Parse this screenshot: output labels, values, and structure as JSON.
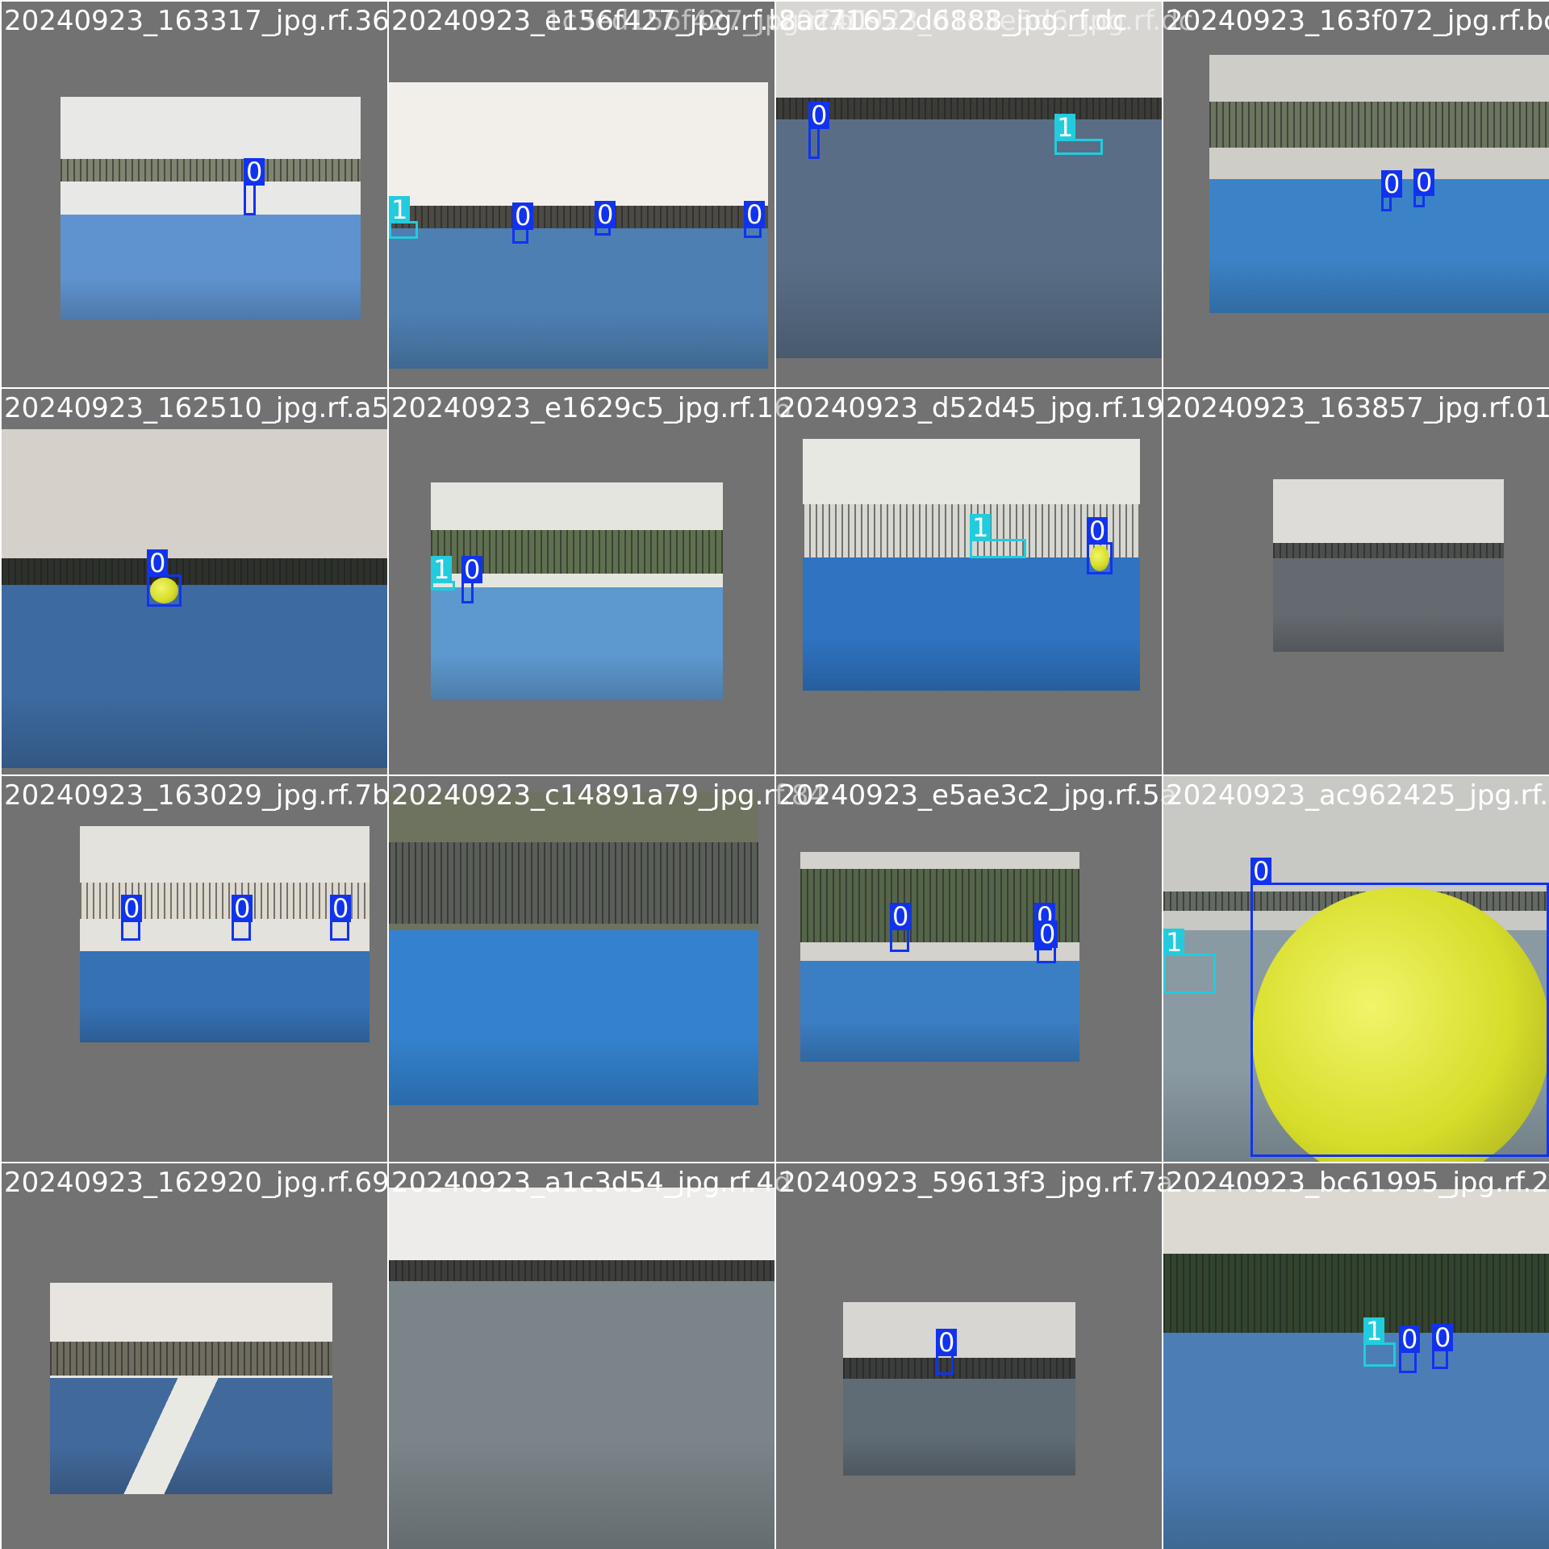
{
  "grid": {
    "tiles": [
      {
        "name": "20240923_163317_jpg.rf.36",
        "overlay": "20240923_1c3ed156f427_jpg.rf.b1",
        "boxes": [
          {
            "cls": "0",
            "label": "0"
          }
        ]
      },
      {
        "name": "20240923_e156f427_jpg.rf.b1",
        "overlay": "20240923_d1c3e5d6_jpg.rf.dc",
        "boxes": [
          {
            "cls": "1",
            "label": "1"
          },
          {
            "cls": "0",
            "label": "0"
          },
          {
            "cls": "0",
            "label": "0"
          },
          {
            "cls": "0",
            "label": "0"
          }
        ]
      },
      {
        "name": "8ac71652d6888_jpg.rf.dc",
        "overlay": "20240923_163f072_jpg.rf.bc",
        "boxes": [
          {
            "cls": "0",
            "label": "0"
          },
          {
            "cls": "1",
            "label": "1"
          }
        ]
      },
      {
        "name": "20240923_163f072_jpg.rf.bc",
        "overlay": "",
        "boxes": [
          {
            "cls": "0",
            "label": "0"
          },
          {
            "cls": "0",
            "label": "0"
          }
        ]
      },
      {
        "name": "20240923_162510_jpg.rf.a5",
        "overlay": "20240923_e1629c5_jpg.rf.16",
        "boxes": [
          {
            "cls": "0",
            "label": "0"
          }
        ]
      },
      {
        "name": "20240923_e1629c5_jpg.rf.16",
        "overlay": "20240923_d52d45_jpg.rf.19",
        "boxes": [
          {
            "cls": "1",
            "label": "1"
          },
          {
            "cls": "0",
            "label": "0"
          }
        ]
      },
      {
        "name": "20240923_d52d45_jpg.rf.19",
        "overlay": "20240923_163857_jpg.rf.01",
        "boxes": [
          {
            "cls": "1",
            "label": "1"
          },
          {
            "cls": "0",
            "label": "0"
          }
        ]
      },
      {
        "name": "20240923_163857_jpg.rf.01",
        "overlay": "",
        "boxes": []
      },
      {
        "name": "20240923_163029_jpg.rf.7b",
        "overlay": "20240923_c14891a79_jpg.rf.84",
        "boxes": [
          {
            "cls": "0",
            "label": "0"
          },
          {
            "cls": "0",
            "label": "0"
          },
          {
            "cls": "0",
            "label": "0"
          }
        ]
      },
      {
        "name": "20240923_c14891a79_jpg.rf.84",
        "overlay": "20240923_e5ae3c2_jpg.rf.5a",
        "boxes": []
      },
      {
        "name": "20240923_e5ae3c2_jpg.rf.5a",
        "overlay": "20240923_ac962425_jpg.rf.d3",
        "boxes": [
          {
            "cls": "0",
            "label": "0"
          },
          {
            "cls": "0",
            "label": "0"
          },
          {
            "cls": "0",
            "label": "0"
          }
        ]
      },
      {
        "name": "20240923_ac962425_jpg.rf.d3",
        "overlay": "",
        "boxes": [
          {
            "cls": "0",
            "label": "0"
          },
          {
            "cls": "1",
            "label": "1"
          }
        ]
      },
      {
        "name": "20240923_162920_jpg.rf.69",
        "overlay": "20240923_a1c3d54_jpg.rf.4d",
        "boxes": []
      },
      {
        "name": "20240923_a1c3d54_jpg.rf.4d",
        "overlay": "20240923_59613f3_jpg.rf.7a",
        "boxes": []
      },
      {
        "name": "20240923_59613f3_jpg.rf.7a",
        "overlay": "20240923_bc61995_jpg.rf.2fc",
        "boxes": [
          {
            "cls": "0",
            "label": "0"
          }
        ]
      },
      {
        "name": "20240923_bc61995_jpg.rf.2fc",
        "overlay": "",
        "boxes": [
          {
            "cls": "1",
            "label": "1"
          },
          {
            "cls": "0",
            "label": "0"
          },
          {
            "cls": "0",
            "label": "0"
          }
        ]
      }
    ]
  },
  "colors": {
    "class0": "#1133ee",
    "class1": "#22ccdd",
    "letterbox": "#727272",
    "court": "#3f77b8"
  }
}
